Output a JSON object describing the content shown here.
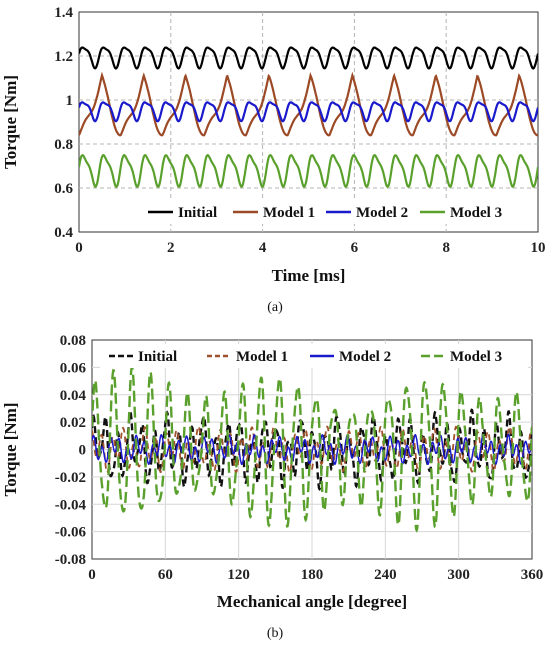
{
  "chart_data": [
    {
      "type": "line",
      "panel_label": "(a)",
      "xlabel": "Time [ms]",
      "ylabel": "Torque [Nm]",
      "xlim": [
        0,
        10
      ],
      "ylim": [
        0.4,
        1.4
      ],
      "xticks": [
        "0",
        "2",
        "4",
        "6",
        "8",
        "10"
      ],
      "yticks": [
        "0.4",
        "0.6",
        "0.8",
        "1",
        "1.2",
        "1.4"
      ],
      "grid": "dashed",
      "legend_position": "bottom-inside",
      "series": [
        {
          "name": "Initial",
          "color": "#000000",
          "dash": "solid",
          "mean": 1.2,
          "amplitude": 0.045,
          "cycles": 22
        },
        {
          "name": "Model 1",
          "color": "#9c4a26",
          "dash": "solid",
          "mean": 0.97,
          "amplitude": 0.13,
          "cycles": 11
        },
        {
          "name": "Model 2",
          "color": "#1a1acc",
          "dash": "solid",
          "mean": 0.955,
          "amplitude": 0.04,
          "cycles": 22
        },
        {
          "name": "Model 3",
          "color": "#5aa02c",
          "dash": "solid",
          "mean": 0.685,
          "amplitude": 0.065,
          "cycles": 22
        }
      ]
    },
    {
      "type": "line",
      "panel_label": "(b)",
      "xlabel": "Mechanical angle [degree]",
      "ylabel": "Torque [Nm]",
      "xlim": [
        0,
        360
      ],
      "ylim": [
        -0.08,
        0.08
      ],
      "xticks": [
        "0",
        "60",
        "120",
        "180",
        "240",
        "300",
        "360"
      ],
      "yticks": [
        "-0.08",
        "-0.06",
        "-0.04",
        "-0.02",
        "0",
        "0.02",
        "0.04",
        "0.06",
        "0.08"
      ],
      "grid": "solid-light",
      "legend_position": "top-inside",
      "series": [
        {
          "name": "Initial",
          "color": "#111111",
          "dash": "dashed",
          "amplitude": 0.024
        },
        {
          "name": "Model 1",
          "color": "#a0522d",
          "dash": "dashed",
          "amplitude": 0.014
        },
        {
          "name": "Model 2",
          "color": "#1a1acc",
          "dash": "solid",
          "amplitude": 0.009
        },
        {
          "name": "Model 3",
          "color": "#5aa02c",
          "dash": "dashed",
          "amplitude": 0.05
        }
      ]
    }
  ]
}
